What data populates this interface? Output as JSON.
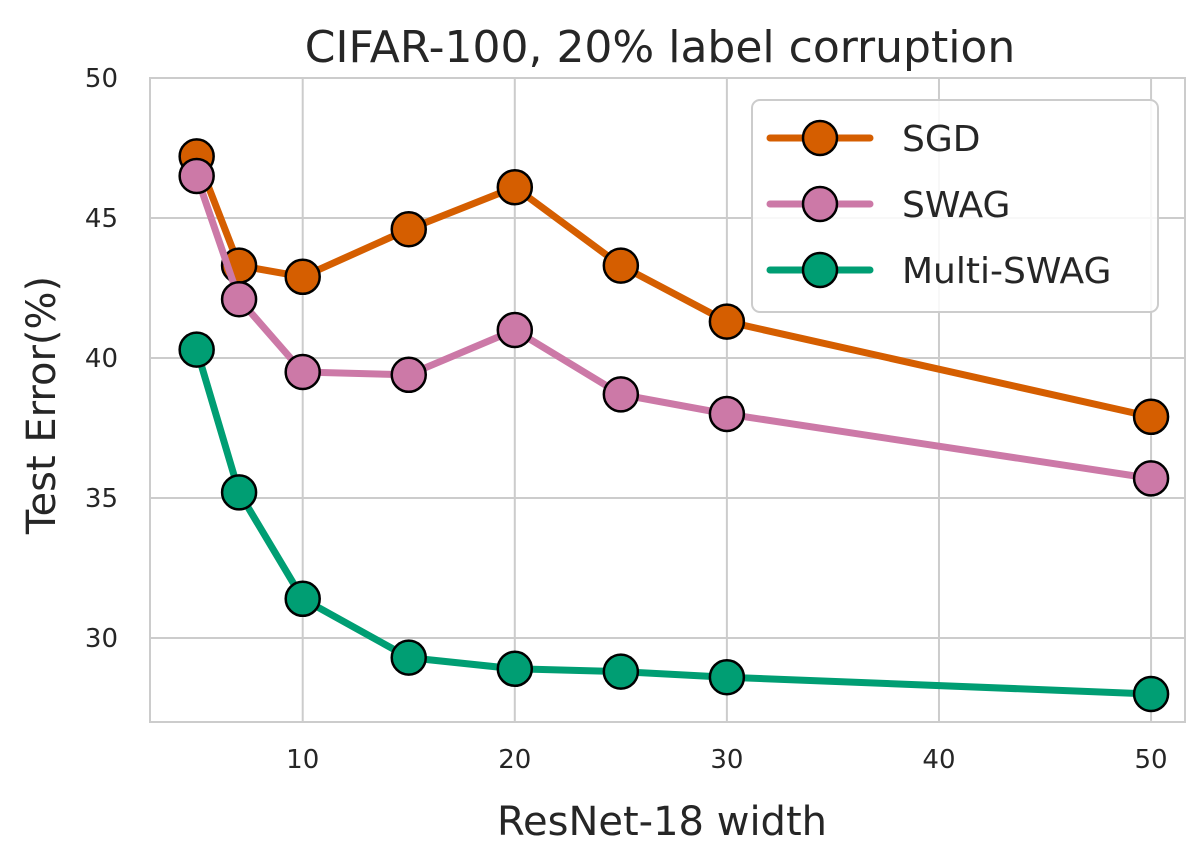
{
  "chart_data": {
    "type": "line",
    "title": "CIFAR-100, 20% label corruption",
    "xlabel": "ResNet-18 width",
    "ylabel": "Test Error(%)",
    "x": [
      5,
      7,
      10,
      15,
      20,
      25,
      30,
      50
    ],
    "xlim": [
      2.8,
      51.6
    ],
    "ylim": [
      27,
      50
    ],
    "xticks": [
      10,
      20,
      30,
      40,
      50
    ],
    "yticks": [
      30,
      35,
      40,
      45,
      50
    ],
    "grid": true,
    "legend_position": "top-right",
    "series": [
      {
        "name": "SGD",
        "color": "#d55e00",
        "values": [
          47.2,
          43.3,
          42.9,
          44.6,
          46.1,
          43.3,
          41.3,
          37.9
        ]
      },
      {
        "name": "SWAG",
        "color": "#cc79a7",
        "values": [
          46.5,
          42.1,
          39.5,
          39.4,
          41.0,
          38.7,
          38.0,
          35.7
        ]
      },
      {
        "name": "Multi-SWAG",
        "color": "#009e73",
        "values": [
          40.3,
          35.2,
          31.4,
          29.3,
          28.9,
          28.8,
          28.6,
          28.0
        ]
      }
    ]
  }
}
